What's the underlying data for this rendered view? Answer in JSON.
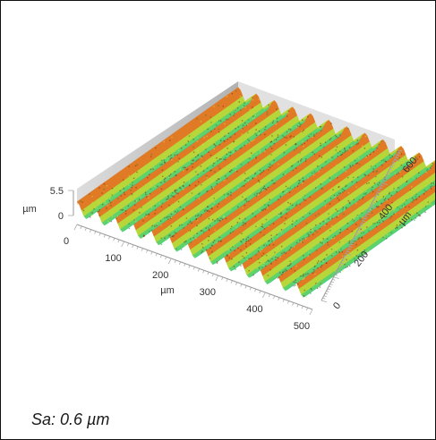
{
  "chart_data": {
    "type": "surface",
    "x_axis": {
      "label": "µm",
      "ticks": [
        0,
        100,
        200,
        300,
        400,
        500
      ],
      "range": [
        0,
        500
      ]
    },
    "y_axis": {
      "label": "µm",
      "ticks": [
        0,
        200,
        400,
        600
      ],
      "range": [
        0,
        640
      ]
    },
    "z_axis": {
      "label": "µm",
      "ticks": [
        0,
        5.5
      ],
      "range": [
        0,
        5.5
      ]
    },
    "ridge_count": 13,
    "colormap": [
      "#1fc7b0",
      "#5fd36a",
      "#b7d63a",
      "#e0c22a",
      "#e07a24",
      "#c9401c"
    ]
  },
  "caption": "Sa: 0.6 µm"
}
